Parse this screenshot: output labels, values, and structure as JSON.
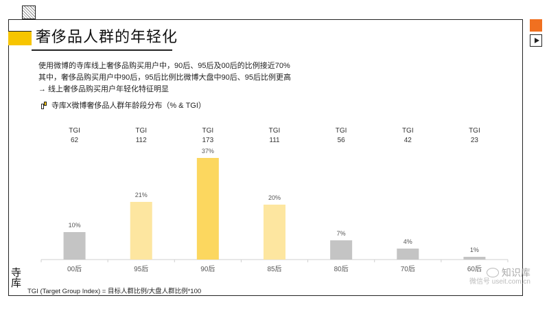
{
  "title": "奢侈品人群的年轻化",
  "description": [
    "使用微博的寺库线上奢侈品购买用户中，90后、95后及00后的比例接近70%",
    "其中，奢侈品购买用户中90后，95后比例比微博大盘中90后、95后比例更高",
    "→  线上奢侈品购买用户年轻化特征明显"
  ],
  "legend_text": "寺库X微博奢侈品人群年龄段分布（% & TGI）",
  "chart_data": {
    "type": "bar",
    "title": "寺库X微博奢侈品人群年龄段分布（% & TGI）",
    "categories": [
      "00后",
      "95后",
      "90后",
      "85后",
      "80后",
      "70后",
      "60后"
    ],
    "values": [
      10,
      21,
      37,
      20,
      7,
      4,
      1
    ],
    "value_labels": [
      "10%",
      "21%",
      "37%",
      "20%",
      "7%",
      "4%",
      "1%"
    ],
    "tgi_label": "TGI",
    "tgi": [
      62,
      112,
      173,
      111,
      56,
      42,
      23
    ],
    "bar_colors": [
      "#c4c4c4",
      "#fde6a0",
      "#fcd75f",
      "#fde6a0",
      "#c4c4c4",
      "#c4c4c4",
      "#c4c4c4"
    ],
    "ylim": [
      0,
      40
    ],
    "grid": false
  },
  "footnote": "TGI (Target Group Index) = 目标人群比例/大盘人群比例*100",
  "logo_text": "寺库",
  "watermark": {
    "line1": "知识库",
    "line2": "微信号 useit.com.cn"
  },
  "colors": {
    "accent_yellow": "#f7c500",
    "accent_orange": "#f07020"
  }
}
